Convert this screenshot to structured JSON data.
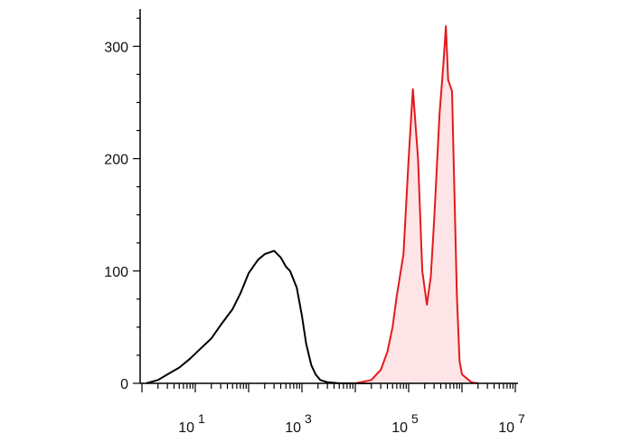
{
  "chart_data": {
    "type": "area",
    "x_scale": "log10",
    "xlim": [
      1,
      10000000
    ],
    "ylim": [
      0,
      330
    ],
    "title": "",
    "xlabel": "",
    "ylabel": "",
    "grid": false,
    "legend": "none",
    "y_ticks": [
      0,
      100,
      200,
      300
    ],
    "x_tick_labels": [
      {
        "base": "10",
        "exp": "1",
        "value": 10
      },
      {
        "base": "10",
        "exp": "3",
        "value": 1000
      },
      {
        "base": "10",
        "exp": "5",
        "value": 100000
      },
      {
        "base": "10",
        "exp": "7",
        "value": 10000000
      }
    ],
    "series": [
      {
        "color": "#000000",
        "fill": "none",
        "points": [
          [
            1.2,
            0
          ],
          [
            2,
            3
          ],
          [
            3,
            8
          ],
          [
            5,
            14
          ],
          [
            8,
            22
          ],
          [
            12,
            30
          ],
          [
            20,
            40
          ],
          [
            30,
            52
          ],
          [
            50,
            66
          ],
          [
            70,
            80
          ],
          [
            100,
            98
          ],
          [
            150,
            110
          ],
          [
            200,
            115
          ],
          [
            300,
            118
          ],
          [
            400,
            112
          ],
          [
            500,
            104
          ],
          [
            600,
            100
          ],
          [
            800,
            85
          ],
          [
            1000,
            60
          ],
          [
            1200,
            35
          ],
          [
            1500,
            16
          ],
          [
            1800,
            8
          ],
          [
            2200,
            3
          ],
          [
            3000,
            1
          ],
          [
            5000,
            0
          ],
          [
            10000,
            0
          ],
          [
            20000,
            0
          ]
        ]
      },
      {
        "color": "#e31a1c",
        "fill": "#fde4e6",
        "points": [
          [
            10000,
            0
          ],
          [
            20000,
            3
          ],
          [
            25000,
            8
          ],
          [
            30000,
            12
          ],
          [
            40000,
            28
          ],
          [
            50000,
            50
          ],
          [
            60000,
            78
          ],
          [
            80000,
            115
          ],
          [
            100000,
            200
          ],
          [
            120000,
            262
          ],
          [
            150000,
            200
          ],
          [
            180000,
            100
          ],
          [
            220000,
            70
          ],
          [
            260000,
            95
          ],
          [
            300000,
            145
          ],
          [
            380000,
            240
          ],
          [
            450000,
            285
          ],
          [
            500000,
            318
          ],
          [
            550000,
            270
          ],
          [
            600000,
            265
          ],
          [
            650000,
            260
          ],
          [
            700000,
            195
          ],
          [
            800000,
            80
          ],
          [
            900000,
            20
          ],
          [
            1000000,
            8
          ],
          [
            1500000,
            1
          ],
          [
            2000000,
            0
          ]
        ]
      }
    ]
  }
}
